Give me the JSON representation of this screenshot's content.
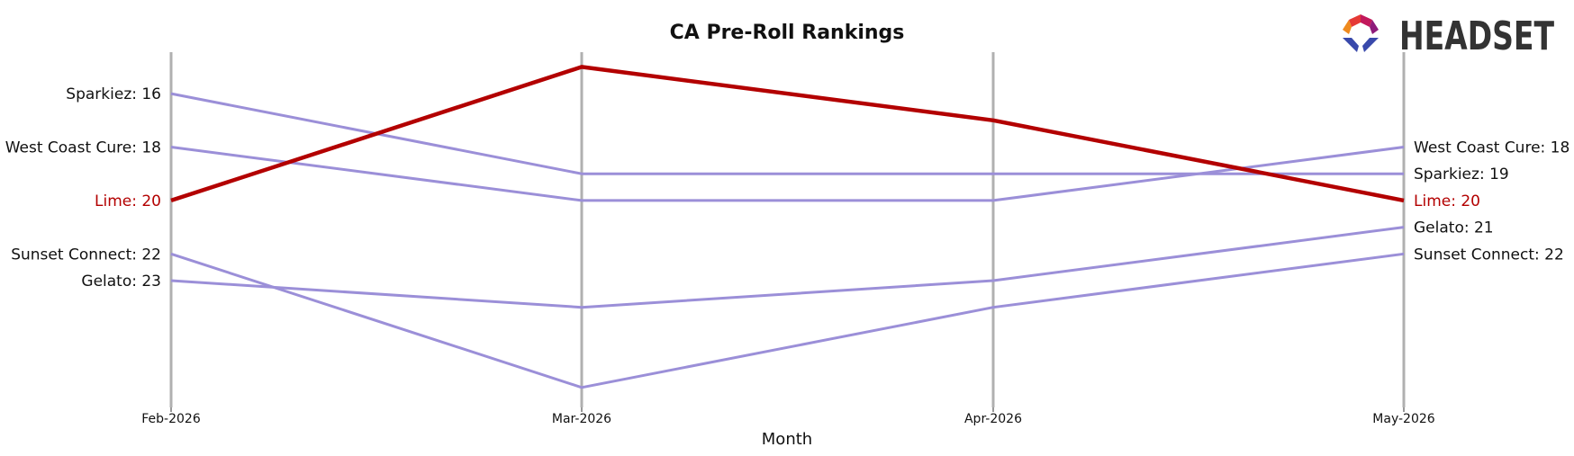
{
  "chart_data": {
    "type": "line",
    "title": "CA Pre-Roll Rankings",
    "xlabel": "Month",
    "ylabel": "",
    "x": [
      "Feb-2026",
      "Mar-2026",
      "Apr-2026",
      "May-2026"
    ],
    "y_inverted": true,
    "ylim": [
      28,
      11.5
    ],
    "grid": false,
    "series": [
      {
        "name": "Sparkiez",
        "values": [
          16,
          19,
          19,
          19
        ],
        "color": "#9b8fd8",
        "highlight": false
      },
      {
        "name": "West Coast Cure",
        "values": [
          18,
          20,
          20,
          18
        ],
        "color": "#9b8fd8",
        "highlight": false
      },
      {
        "name": "Lime",
        "values": [
          20,
          15,
          17,
          20
        ],
        "color": "#b30000",
        "highlight": true
      },
      {
        "name": "Sunset Connect",
        "values": [
          22,
          27,
          24,
          22
        ],
        "color": "#9b8fd8",
        "highlight": false
      },
      {
        "name": "Gelato",
        "values": [
          23,
          24,
          23,
          21
        ],
        "color": "#9b8fd8",
        "highlight": false
      }
    ],
    "left_labels": [
      "Sparkiez: 16",
      "West Coast Cure: 18",
      "Lime: 20",
      "Sunset Connect: 22",
      "Gelato: 23"
    ],
    "right_labels": [
      "West Coast Cure: 18",
      "Sparkiez: 19",
      "Lime: 20",
      "Gelato: 21",
      "Sunset Connect: 22"
    ]
  },
  "logo": {
    "text": "HEADSET",
    "text_color": "#333333"
  },
  "colors": {
    "highlight": "#b30000",
    "other": "#9b8fd8",
    "axis_line": "#b0b0b0",
    "label_default": "#111111"
  }
}
